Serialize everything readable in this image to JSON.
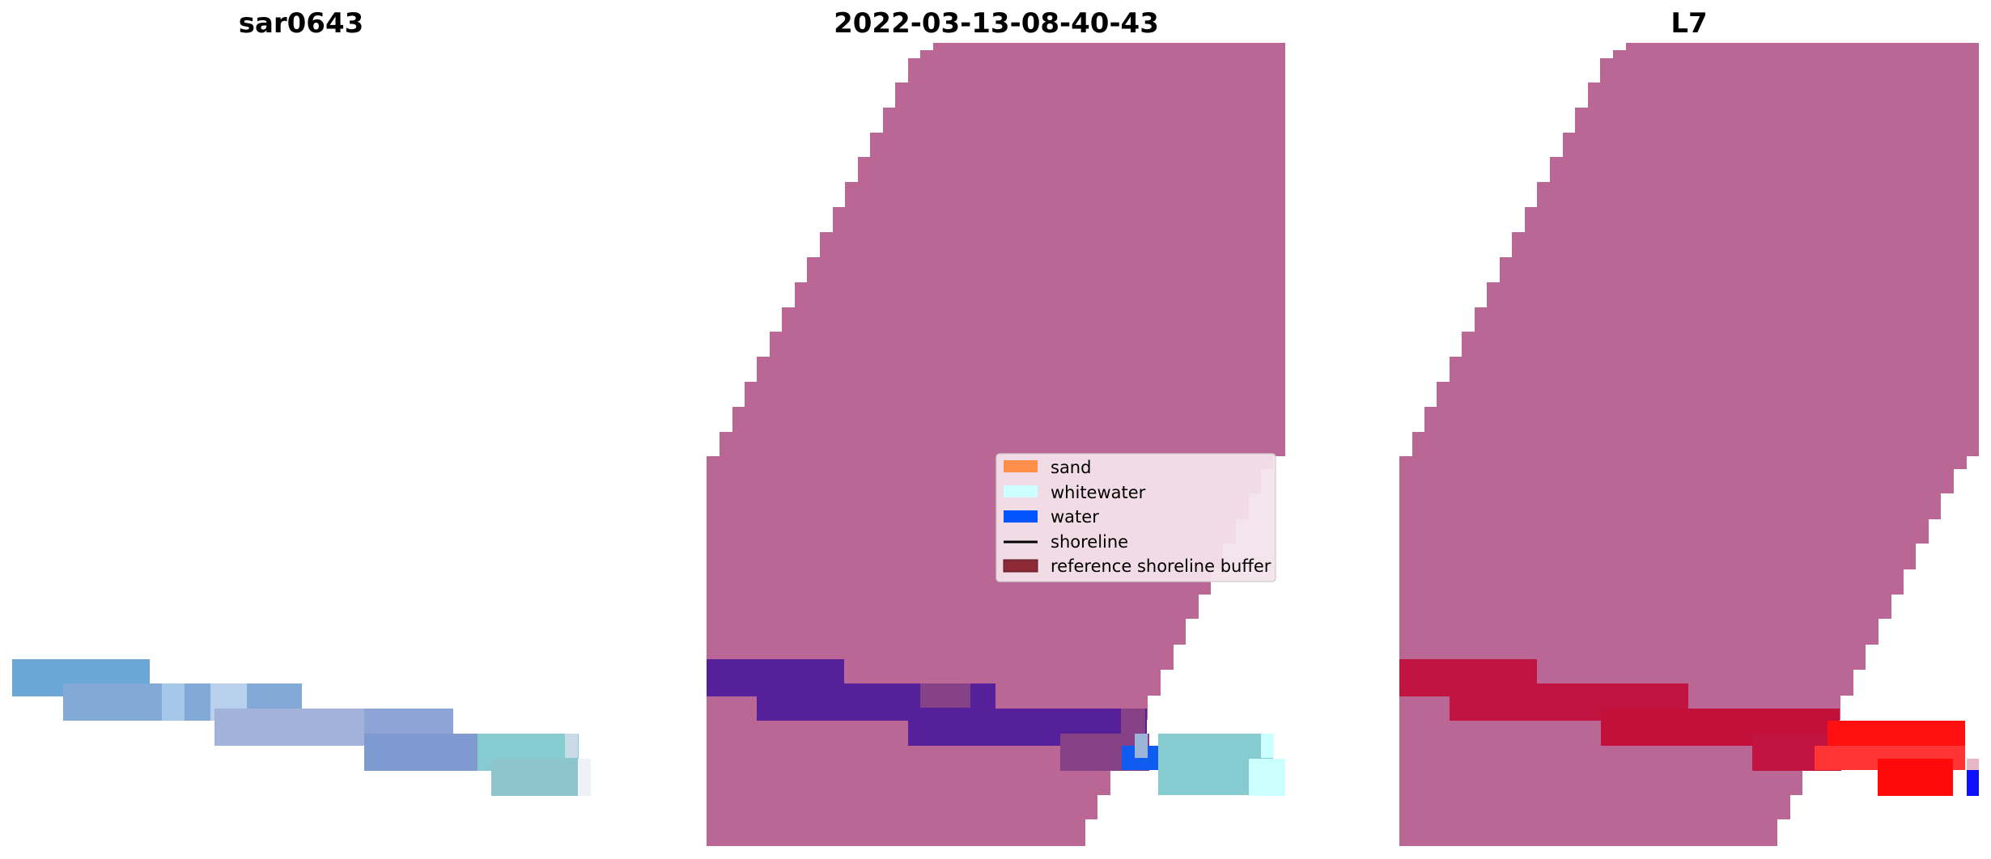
{
  "panels": [
    {
      "title": "sar0643"
    },
    {
      "title": "2022-03-13-08-40-43"
    },
    {
      "title": "L7"
    }
  ],
  "legend": {
    "items": [
      {
        "label": "sand",
        "color": "#ff8f4a",
        "kind": "patch"
      },
      {
        "label": "whitewater",
        "color": "#ccffff",
        "kind": "patch"
      },
      {
        "label": "water",
        "color": "#0055ff",
        "kind": "patch"
      },
      {
        "label": "shoreline",
        "color": "#000000",
        "kind": "line"
      },
      {
        "label": "reference shoreline buffer",
        "color": "#8b2a35",
        "kind": "patch"
      }
    ]
  },
  "colors": {
    "buffer_overlay": "#bb6796",
    "water_class_tint": "#56209a",
    "change_red": "#ff1010",
    "sar_blue": "#7aa0d2",
    "sar_cyan": "#86cbd0"
  }
}
